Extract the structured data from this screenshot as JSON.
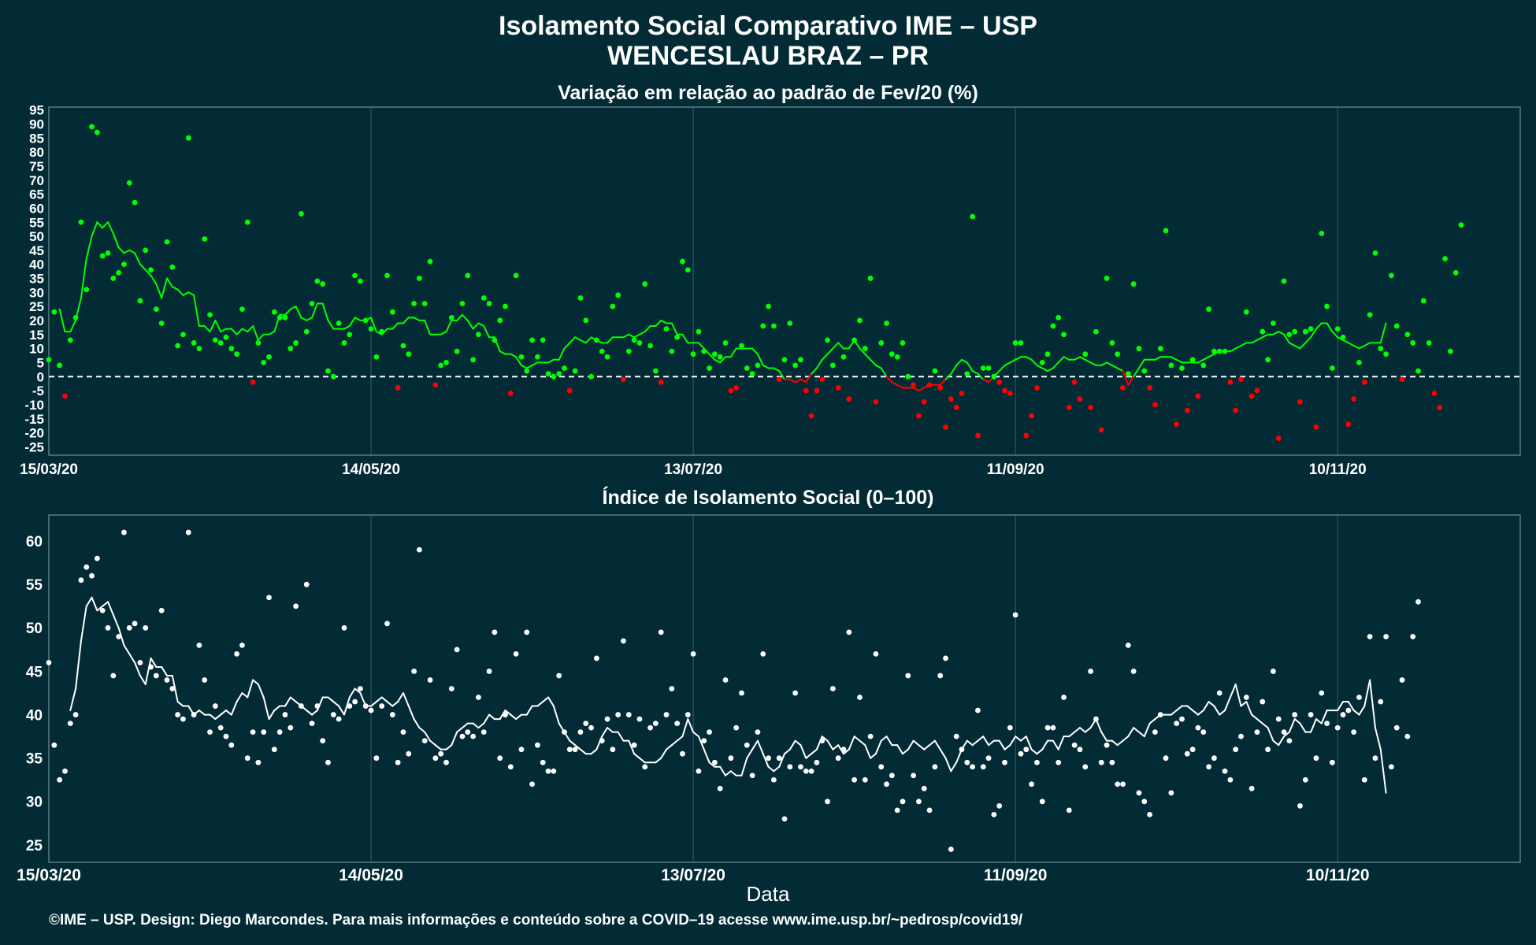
{
  "header": {
    "title_line1": "Isolamento Social Comparativo IME – USP",
    "title_line2": "WENCESLAU BRAZ – PR"
  },
  "x_axis_label": "Data",
  "credit": "©IME – USP. Design: Diego Marcondes. Para mais informações e conteúdo sobre a COVID–19 acesse www.ime.usp.br/~pedrosp/covid19/",
  "colors": {
    "background": "#022b36",
    "positive": "#00ff00",
    "negative": "#ff0000",
    "index": "#ffffff"
  },
  "chart_data": [
    {
      "type": "scatter",
      "title": "Variação em relação ao padrão de Fev/20 (%)",
      "xlabel": "Data",
      "ylabel": "",
      "x_range": [
        "2020-03-15",
        "2020-12-14"
      ],
      "ylim": [
        -28,
        96
      ],
      "y_ticks": [
        95,
        90,
        85,
        80,
        75,
        70,
        65,
        60,
        55,
        50,
        45,
        40,
        35,
        30,
        25,
        20,
        15,
        10,
        5,
        0,
        -5,
        -10,
        -15,
        -20,
        -25
      ],
      "x_ticks": [
        {
          "date": "2020-03-15",
          "label": "15/03/20"
        },
        {
          "date": "2020-05-14",
          "label": "14/05/20"
        },
        {
          "date": "2020-07-13",
          "label": "13/07/20"
        },
        {
          "date": "2020-09-11",
          "label": "11/09/20"
        },
        {
          "date": "2020-11-10",
          "label": "10/11/20"
        }
      ],
      "reference_line": 0,
      "grid": "vertical",
      "series": [
        {
          "points": "daily",
          "start": "2020-03-15",
          "values": [
            6,
            23,
            4,
            -7,
            13,
            21,
            55,
            31,
            89,
            87,
            43,
            44,
            35,
            37,
            40,
            69,
            62,
            27,
            45,
            38,
            24,
            19,
            48,
            39,
            11,
            15,
            85,
            12,
            10,
            49,
            22,
            13,
            12,
            14,
            10,
            8,
            24,
            55,
            -2,
            12,
            5,
            7,
            23,
            21,
            21,
            10,
            12,
            58,
            16,
            26,
            34,
            33,
            2,
            0,
            19,
            12,
            15,
            36,
            34,
            20,
            17,
            7,
            16,
            36,
            23,
            -4,
            11,
            8,
            26,
            35,
            26,
            41,
            -3,
            4,
            5,
            21,
            9,
            26,
            36,
            6,
            15,
            28,
            26,
            13,
            20,
            25,
            -6,
            36,
            7,
            2,
            13,
            7,
            13,
            1,
            0,
            1,
            3,
            -5,
            2,
            28,
            20,
            0,
            13,
            9,
            7,
            25,
            29,
            -1,
            9,
            13,
            12,
            33,
            11,
            2,
            -2,
            17,
            9,
            14,
            41,
            38,
            8,
            16,
            9,
            3,
            8,
            7,
            12,
            -5,
            -4,
            11,
            3,
            1,
            4,
            18,
            25,
            18,
            -1,
            6,
            19,
            4,
            6,
            -5,
            -14,
            -5,
            -1,
            13,
            4,
            -4,
            7,
            -8,
            13,
            20,
            10,
            35,
            -9,
            12,
            19,
            8,
            7,
            12,
            0,
            -3,
            -14,
            -9,
            -3,
            2,
            -4,
            -18,
            -8,
            -11,
            -6,
            1,
            57,
            -21,
            3,
            3,
            0,
            -2,
            -5,
            -6,
            12,
            12,
            -21,
            -14,
            -4,
            5,
            8,
            18,
            21,
            15,
            -11,
            -2,
            -8,
            8,
            -11,
            16,
            -19,
            35,
            12,
            8,
            -4,
            1,
            33,
            10,
            2,
            -4,
            -10,
            10,
            52,
            4,
            -17,
            3,
            -12,
            6,
            -7,
            4,
            24,
            9,
            9,
            9,
            -2,
            -12,
            -1,
            23,
            -7,
            -5,
            16,
            6,
            19,
            -22,
            34,
            15,
            16,
            -9,
            16,
            17,
            -18,
            51,
            25,
            3,
            17,
            14,
            -17,
            -8,
            5,
            -2,
            22,
            44,
            10,
            8,
            36,
            18,
            -1,
            15,
            12,
            2,
            27,
            12,
            -6,
            -11,
            42,
            9,
            37,
            54
          ],
          "trend": [
            null,
            null,
            24,
            16,
            16,
            20,
            28,
            42,
            50,
            55,
            53,
            55,
            51,
            46,
            44,
            45,
            44,
            40,
            38,
            36,
            33,
            28,
            35,
            32,
            31,
            29,
            30,
            29,
            18,
            18,
            16,
            20,
            16,
            17,
            17,
            15,
            17,
            16,
            18,
            13,
            15,
            15,
            16,
            22,
            22,
            24,
            25,
            21,
            20,
            21,
            26,
            26,
            20,
            17,
            17,
            17,
            18,
            21,
            20,
            20,
            21,
            16,
            15,
            17,
            17,
            19,
            19,
            21,
            21,
            20,
            20,
            15,
            15,
            15,
            16,
            20,
            20,
            22,
            20,
            17,
            19,
            18,
            14,
            14,
            9,
            8,
            8,
            7,
            4,
            3,
            4,
            5,
            5,
            5,
            6,
            6,
            10,
            12,
            14,
            13,
            12,
            14,
            13,
            12,
            12,
            14,
            14,
            14,
            15,
            14,
            15,
            16,
            18,
            18,
            20,
            19,
            19,
            15,
            15,
            12,
            12,
            12,
            10,
            8,
            6,
            5,
            7,
            7,
            10,
            10,
            10,
            10,
            8,
            4,
            3,
            3,
            2,
            -1,
            -1,
            -2,
            -1,
            -2,
            1,
            3,
            6,
            8,
            10,
            12,
            10,
            10,
            13,
            10,
            8,
            6,
            4,
            3,
            0,
            -2,
            -3,
            -4,
            -4,
            -4,
            -5,
            -4,
            -3,
            -3,
            -3,
            -1,
            1,
            4,
            6,
            5,
            2,
            1,
            -1,
            -2,
            0,
            2,
            4,
            5,
            6,
            7,
            7,
            6,
            4,
            3,
            2,
            3,
            5,
            7,
            6,
            6,
            7,
            6,
            5,
            4,
            4,
            5,
            4,
            3,
            2,
            -3,
            0,
            3,
            6,
            6,
            6,
            7,
            7,
            7,
            6,
            5,
            5,
            5,
            5,
            6,
            7,
            8,
            9,
            9,
            9,
            10,
            11,
            12,
            12,
            13,
            14,
            15,
            15,
            16,
            15,
            12,
            11,
            10,
            12,
            14,
            17,
            19,
            19,
            16,
            14,
            13,
            12,
            11,
            10,
            11,
            12,
            12,
            12,
            19
          ]
        }
      ]
    },
    {
      "type": "scatter",
      "title": "Índice de Isolamento Social (0–100)",
      "xlabel": "Data",
      "ylabel": "",
      "x_range": [
        "2020-03-15",
        "2020-12-14"
      ],
      "ylim": [
        23,
        63
      ],
      "y_ticks": [
        60,
        55,
        50,
        45,
        40,
        35,
        30,
        25
      ],
      "x_ticks": [
        {
          "date": "2020-03-15",
          "label": "15/03/20"
        },
        {
          "date": "2020-05-14",
          "label": "14/05/20"
        },
        {
          "date": "2020-07-13",
          "label": "13/07/20"
        },
        {
          "date": "2020-09-11",
          "label": "11/09/20"
        },
        {
          "date": "2020-11-10",
          "label": "10/11/20"
        }
      ],
      "grid": "vertical",
      "series": [
        {
          "points": "daily",
          "start": "2020-03-15",
          "values": [
            46,
            36.5,
            32.5,
            33.5,
            39,
            40,
            55.5,
            57,
            56,
            58,
            52,
            50,
            44.5,
            49,
            61,
            50,
            50.5,
            46,
            50,
            45.5,
            44.5,
            52,
            44,
            43,
            40,
            39.5,
            61,
            40,
            48,
            44,
            38,
            41,
            38.5,
            37.5,
            36.5,
            47,
            48,
            35,
            38,
            34.5,
            38,
            53.5,
            36,
            38,
            40,
            38.5,
            52.5,
            41,
            55,
            39,
            41,
            37,
            34.5,
            40,
            39.5,
            50,
            41,
            41.5,
            43,
            41,
            40.5,
            35,
            41,
            50.5,
            40,
            34.5,
            38,
            35.5,
            45,
            59,
            37,
            44,
            35,
            35.5,
            34.5,
            43,
            47.5,
            37.5,
            38,
            37.5,
            42,
            38,
            45,
            49.5,
            35,
            40,
            34,
            47,
            36,
            49.5,
            32,
            36.5,
            34.5,
            33.5,
            33.5,
            44.5,
            38,
            36,
            36,
            38,
            39,
            38.5,
            46.5,
            37,
            39.5,
            36,
            40,
            48.5,
            40,
            36.5,
            39.5,
            34,
            38.5,
            39,
            49.5,
            40,
            43,
            39,
            35.5,
            40,
            47,
            33.5,
            37,
            38,
            34.5,
            31.5,
            44,
            35,
            38.5,
            42.5,
            36.5,
            33,
            38,
            47,
            35,
            32.5,
            35,
            28,
            34,
            42.5,
            34,
            33.5,
            33.5,
            34.5,
            37,
            30,
            43,
            35,
            36,
            49.5,
            32.5,
            42,
            32.5,
            37.5,
            47,
            34,
            32,
            33,
            29,
            30,
            44.5,
            33,
            30,
            31.5,
            29,
            34,
            44.5,
            46.5,
            24.5,
            37.5,
            36,
            34.5,
            34,
            40.5,
            34,
            35,
            28.5,
            29.5,
            34.5,
            38.5,
            51.5,
            35.5,
            36,
            32,
            34.5,
            30,
            38.5,
            38.5,
            34.5,
            42,
            29,
            36.5,
            36,
            34,
            45,
            39.5,
            34.5,
            36.5,
            34.5,
            32,
            32,
            48,
            45,
            31,
            30,
            28.5,
            38,
            40,
            35,
            31,
            39,
            39.5,
            35.5,
            36,
            38.5,
            38,
            34,
            35,
            42.5,
            33.5,
            32.5,
            36,
            37.5,
            42,
            31.5,
            38,
            41.5,
            36,
            45,
            39.5,
            38,
            37,
            40,
            29.5,
            32.5,
            40,
            35,
            42.5,
            39,
            34.5,
            38.5,
            40,
            40.5,
            38,
            42,
            32.5,
            49,
            35,
            41.5,
            49,
            34,
            38.5,
            44,
            37.5,
            49,
            53
          ],
          "trend": [
            null,
            null,
            null,
            null,
            40.5,
            43,
            48.5,
            52.5,
            53.5,
            52,
            52.5,
            53,
            51.5,
            50,
            48,
            47,
            46,
            44.5,
            43.5,
            46.5,
            45.5,
            45.5,
            44.5,
            44.5,
            41.5,
            41,
            41,
            40,
            40.5,
            40,
            40,
            39.5,
            40,
            40.5,
            40,
            41.5,
            42.5,
            42,
            44,
            43.5,
            42,
            39.5,
            40.5,
            41,
            41,
            42,
            41.5,
            41,
            40.5,
            40,
            40.5,
            42,
            42,
            41.5,
            41,
            40,
            42,
            43,
            42.5,
            41,
            41,
            41.5,
            42,
            41.5,
            41,
            41.5,
            42.5,
            41,
            39.5,
            38.5,
            38,
            37,
            36.5,
            36,
            36,
            36.5,
            38,
            38.5,
            39,
            39,
            38.5,
            39,
            40,
            39.5,
            39.5,
            40.5,
            40,
            39.5,
            40,
            40,
            41,
            41,
            41.5,
            42,
            41,
            39,
            38,
            37,
            36.5,
            36,
            35.5,
            35.5,
            36,
            37.5,
            38.5,
            38,
            38,
            37,
            37,
            35.5,
            35,
            34.5,
            34.5,
            34.5,
            35,
            36,
            36.5,
            37,
            37.5,
            39.5,
            38,
            37.5,
            36,
            34.5,
            34,
            34,
            33,
            33.5,
            33,
            33,
            35,
            36,
            37,
            35.5,
            34,
            33.5,
            34,
            35.5,
            36,
            37,
            36.5,
            35,
            35.5,
            36,
            37.5,
            37,
            36,
            36.5,
            35.5,
            36,
            37.5,
            37,
            36.5,
            35,
            35.5,
            37,
            37.5,
            36.5,
            36.5,
            35.5,
            36,
            37,
            36.5,
            36,
            36.5,
            37,
            36,
            35,
            33.5,
            34.5,
            36,
            37,
            36.5,
            37,
            37.5,
            36.5,
            37,
            37,
            36,
            36.5,
            37.5,
            37,
            37.5,
            36,
            35.5,
            36,
            37,
            37,
            36,
            37.5,
            37.5,
            38,
            38.5,
            38,
            38.5,
            39.5,
            38,
            37,
            37,
            36.5,
            37,
            37.5,
            38.5,
            38,
            37.5,
            39,
            39.5,
            40,
            40,
            40,
            40.5,
            41,
            41,
            40.5,
            40,
            40.5,
            41.5,
            41,
            40,
            40.5,
            42,
            43.5,
            41,
            41.5,
            40,
            39.5,
            39,
            38.5,
            37,
            36.5,
            37.5,
            38,
            39.5,
            39,
            38,
            38,
            39.5,
            39,
            40.5,
            40.5,
            40.5,
            41.5,
            41.5,
            40.5,
            40,
            41,
            44,
            38.5,
            36,
            31
          ]
        }
      ]
    }
  ]
}
